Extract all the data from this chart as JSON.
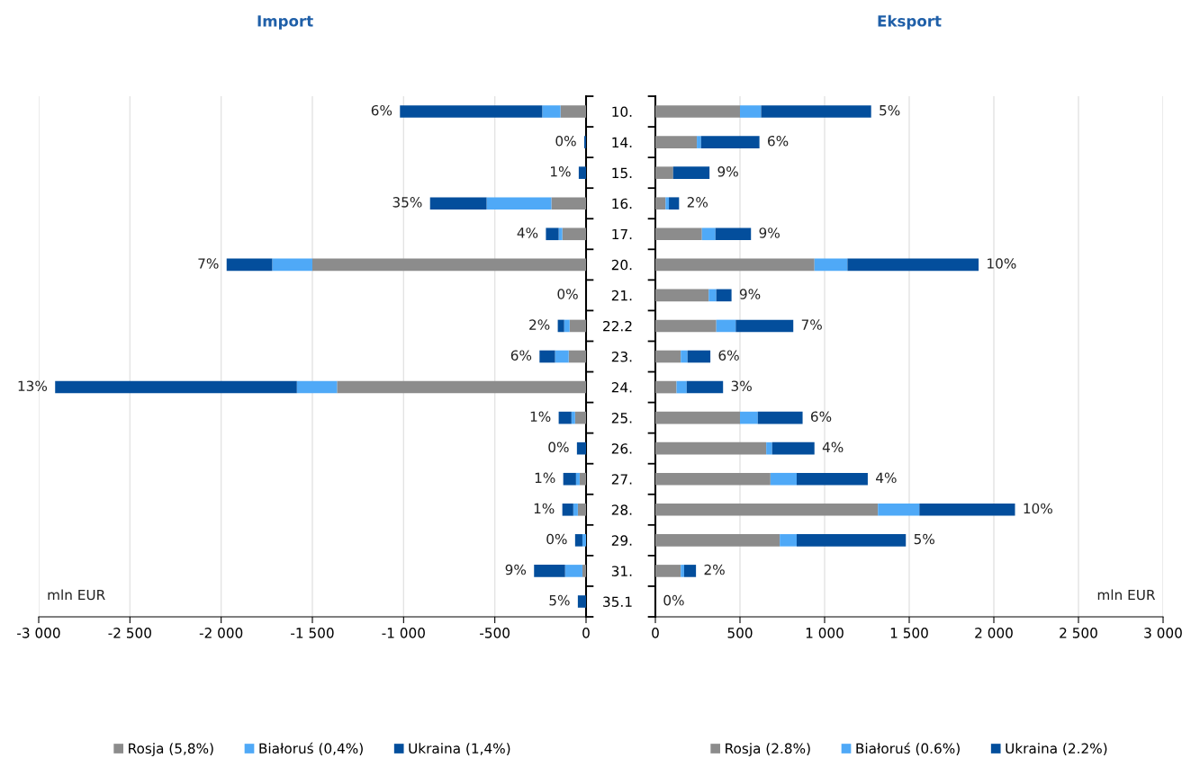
{
  "chart_data": [
    {
      "type": "bar",
      "orientation": "horizontal",
      "stacked": true,
      "title": "Import",
      "categories": [
        "10.",
        "14.",
        "15.",
        "16.",
        "17.",
        "20.",
        "21.",
        "22.2",
        "23.",
        "24.",
        "25.",
        "26.",
        "27.",
        "28.",
        "29.",
        "31.",
        "35.1"
      ],
      "series": [
        {
          "name": "Rosja (5,8%)",
          "color": "#8c8c8c",
          "values": [
            -140,
            null,
            null,
            -190,
            -130,
            -1500,
            null,
            -90,
            -95,
            -1365,
            -60,
            null,
            -35,
            -45,
            null,
            -20,
            null
          ]
        },
        {
          "name": "Białoruś (0,4%)",
          "color": "#4fa9f7",
          "values": [
            -100,
            null,
            null,
            -355,
            -20,
            -220,
            null,
            -30,
            -75,
            -220,
            -20,
            null,
            -20,
            -25,
            -20,
            -95,
            null
          ]
        },
        {
          "name": "Ukraina (1,4%)",
          "color": "#034e9c",
          "values": [
            -780,
            -10,
            -40,
            -310,
            -70,
            -250,
            null,
            -35,
            -85,
            -1325,
            -70,
            -50,
            -70,
            -60,
            -40,
            -170,
            -45
          ]
        }
      ],
      "xlim": [
        -3000,
        0
      ],
      "xticks": [
        {
          "value": -3000,
          "label": "-3 000"
        },
        {
          "value": -2500,
          "label": "-2 500"
        },
        {
          "value": -2000,
          "label": "-2 000"
        },
        {
          "value": -1500,
          "label": "-1 500"
        },
        {
          "value": -1000,
          "label": "-1 000"
        },
        -500,
        0
      ],
      "tick_labels": "x",
      "grid": "x",
      "legend": "bottom",
      "annotations": [
        {
          "text": "6%",
          "x": -1020,
          "y": "10."
        },
        {
          "text": "0%",
          "x": -10,
          "y": "14."
        },
        {
          "text": "1%",
          "x": -40,
          "y": "15."
        },
        {
          "text": "35%",
          "x": -855,
          "y": "16."
        },
        {
          "text": "4%",
          "x": -220,
          "y": "17."
        },
        {
          "text": "7%",
          "x": -1970,
          "y": "20."
        },
        "0%",
        {
          "text": "2%",
          "x": -155,
          "y": "22.2"
        },
        {
          "text": "6%",
          "x": -255,
          "y": "23."
        },
        {
          "text": "13%",
          "x": -2910,
          "y": "24."
        },
        {
          "text": "1%",
          "x": -150,
          "y": "25."
        },
        {
          "text": "0%",
          "x": -50,
          "y": "26."
        },
        {
          "text": "1%",
          "x": -125,
          "y": "27."
        },
        {
          "text": "1%",
          "x": -130,
          "y": "28."
        },
        {
          "text": "0%",
          "x": -60,
          "y": "29."
        },
        {
          "text": "9%",
          "x": -285,
          "y": "31."
        },
        {
          "text": "5%",
          "x": -45,
          "y": "35.1"
        },
        "mln EUR"
      ]
    },
    {
      "type": "bar",
      "orientation": "horizontal",
      "stacked": true,
      "title": "Eksport",
      "categories": [
        "10.",
        "14.",
        "15.",
        "16.",
        "17.",
        "20.",
        "21.",
        "22.2",
        "23.",
        "24.",
        "25.",
        "26.",
        "27.",
        "28.",
        "29.",
        "31.",
        "35.1"
      ],
      "series": [
        {
          "name": "Rosja (2.8%)",
          "color": "#8c8c8c",
          "values": [
            500,
            245,
            105,
            60,
            275,
            940,
            315,
            360,
            150,
            125,
            500,
            655,
            680,
            1315,
            735,
            150,
            null
          ]
        },
        {
          "name": "Białoruś (0.6%)",
          "color": "#4fa9f7",
          "values": [
            125,
            25,
            null,
            20,
            80,
            195,
            45,
            115,
            40,
            60,
            105,
            35,
            155,
            245,
            100,
            20,
            null
          ]
        },
        {
          "name": "Ukraina (2.2%)",
          "color": "#034e9c",
          "values": [
            650,
            345,
            215,
            60,
            210,
            775,
            90,
            340,
            135,
            215,
            265,
            250,
            420,
            565,
            645,
            70,
            null
          ]
        }
      ],
      "xlim": [
        0,
        3000
      ],
      "xticks": [
        0,
        500,
        {
          "value": 1000,
          "label": "1 000"
        },
        {
          "value": 1500,
          "label": "1 500"
        },
        {
          "value": 2000,
          "label": "2 000"
        },
        {
          "value": 2500,
          "label": "2 500"
        },
        {
          "value": 3000,
          "label": "3 000"
        }
      ],
      "grid": "x",
      "legend": "bottom",
      "annotations": [
        {
          "text": "5%",
          "x": 1275,
          "y": "10."
        },
        {
          "text": "6%",
          "x": 615,
          "y": "14."
        },
        {
          "text": "9%",
          "x": 320,
          "y": "15."
        },
        {
          "text": "2%",
          "x": 140,
          "y": "16."
        },
        {
          "text": "9%",
          "x": 565,
          "y": "17."
        },
        {
          "text": "10%",
          "x": 1910,
          "y": "20."
        },
        {
          "text": "9%",
          "x": 450,
          "y": "21."
        },
        {
          "text": "7%",
          "x": 815,
          "y": "22.2"
        },
        {
          "text": "6%",
          "x": 325,
          "y": "23."
        },
        {
          "text": "3%",
          "x": 400,
          "y": "24."
        },
        {
          "text": "6%",
          "x": 870,
          "y": "25."
        },
        {
          "text": "4%",
          "x": 940,
          "y": "26."
        },
        {
          "text": "4%",
          "x": 1255,
          "y": "27."
        },
        {
          "text": "10%",
          "x": 2125,
          "y": "28."
        },
        {
          "text": "5%",
          "x": 1480,
          "y": "29."
        },
        {
          "text": "2%",
          "x": 240,
          "y": "31."
        },
        "0%",
        "mln EUR"
      ]
    }
  ]
}
